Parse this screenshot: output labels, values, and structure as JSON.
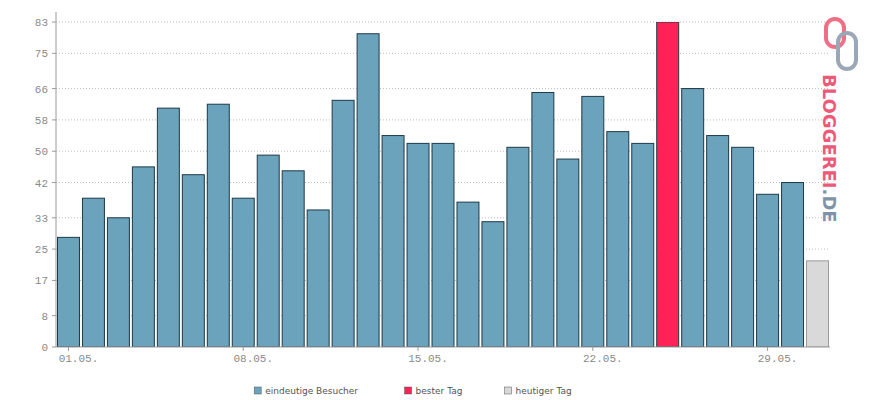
{
  "chart_data": {
    "type": "bar",
    "categories": [
      "01.05.",
      null,
      null,
      null,
      null,
      null,
      null,
      "08.05.",
      null,
      null,
      null,
      null,
      null,
      null,
      "15.05.",
      null,
      null,
      null,
      null,
      null,
      null,
      "22.05.",
      null,
      null,
      null,
      null,
      null,
      null,
      "29.05.",
      null,
      null
    ],
    "series": [
      {
        "name": "eindeutige Besucher",
        "color": "#6aa3bb",
        "values": [
          28,
          38,
          33,
          46,
          61,
          44,
          62,
          38,
          49,
          45,
          35,
          63,
          80,
          54,
          52,
          52,
          37,
          32,
          51,
          65,
          48,
          64,
          55,
          52,
          null,
          66,
          54,
          51,
          39,
          42,
          null
        ]
      },
      {
        "name": "bester Tag",
        "color": "#ff2257",
        "values": [
          null,
          null,
          null,
          null,
          null,
          null,
          null,
          null,
          null,
          null,
          null,
          null,
          null,
          null,
          null,
          null,
          null,
          null,
          null,
          null,
          null,
          null,
          null,
          null,
          83,
          null,
          null,
          null,
          null,
          null,
          null
        ]
      },
      {
        "name": "heutiger Tag",
        "color": "#d9d9d9",
        "values": [
          null,
          null,
          null,
          null,
          null,
          null,
          null,
          null,
          null,
          null,
          null,
          null,
          null,
          null,
          null,
          null,
          null,
          null,
          null,
          null,
          null,
          null,
          null,
          null,
          null,
          null,
          null,
          null,
          null,
          null,
          22
        ]
      }
    ],
    "ylim": [
      0,
      83
    ],
    "yticks": [
      0,
      8,
      17,
      25,
      33,
      42,
      50,
      58,
      66,
      75,
      83
    ],
    "grid": true,
    "legend": "bottom",
    "annotations": [
      "BLOGGEREI.DE"
    ]
  }
}
